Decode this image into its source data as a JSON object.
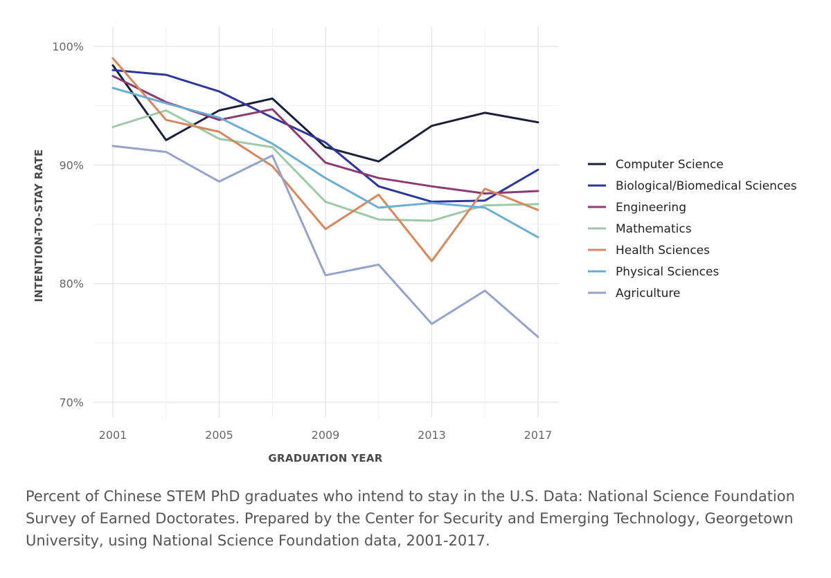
{
  "chart_data": {
    "type": "line",
    "title": "",
    "xlabel": "GRADUATION YEAR",
    "ylabel": "INTENTION-TO-STAY RATE",
    "xlim": [
      2001,
      2017
    ],
    "ylim": [
      70,
      100
    ],
    "x": [
      2001,
      2003,
      2005,
      2007,
      2009,
      2011,
      2013,
      2015,
      2017
    ],
    "x_ticks": [
      2001,
      2005,
      2009,
      2013,
      2017
    ],
    "x_tick_labels": [
      "2001",
      "2005",
      "2009",
      "2013",
      "2017"
    ],
    "y_ticks": [
      70,
      80,
      90,
      100
    ],
    "y_tick_labels": [
      "70%",
      "80%",
      "90%",
      "100%"
    ],
    "grid": true,
    "legend_position": "right",
    "series": [
      {
        "name": "Computer Science",
        "color": "#1b1f3b",
        "values": [
          98.4,
          92.1,
          94.6,
          95.6,
          91.5,
          90.3,
          93.3,
          94.4,
          93.6
        ]
      },
      {
        "name": "Biological/Biomedical Sciences",
        "color": "#2e35a0",
        "values": [
          98.0,
          97.6,
          96.2,
          94.0,
          91.9,
          88.2,
          86.9,
          87.0,
          89.6
        ]
      },
      {
        "name": "Engineering",
        "color": "#8c3a72",
        "values": [
          97.5,
          95.3,
          93.8,
          94.7,
          90.2,
          88.9,
          88.2,
          87.6,
          87.8
        ]
      },
      {
        "name": "Mathematics",
        "color": "#9cc9a6",
        "values": [
          93.2,
          94.6,
          92.2,
          91.5,
          86.9,
          85.4,
          85.3,
          86.6,
          86.7
        ]
      },
      {
        "name": "Health Sciences",
        "color": "#d9875a",
        "values": [
          99.0,
          93.8,
          92.8,
          89.9,
          84.6,
          87.5,
          81.9,
          88.0,
          86.2
        ]
      },
      {
        "name": "Physical Sciences",
        "color": "#6aaed3",
        "values": [
          96.5,
          95.2,
          94.0,
          91.8,
          88.9,
          86.4,
          86.8,
          86.4,
          83.9
        ]
      },
      {
        "name": "Agriculture",
        "color": "#94a3cc",
        "values": [
          91.6,
          91.1,
          88.6,
          90.8,
          80.7,
          81.6,
          76.6,
          79.4,
          75.5
        ]
      }
    ]
  },
  "caption": "Percent of Chinese STEM PhD graduates who intend to stay in the U.S. Data: National Science Foundation Survey of Earned Doctorates. Prepared by the Center for Security and Emerging Technology, Georgetown University, using National Science Foundation data, 2001-2017."
}
